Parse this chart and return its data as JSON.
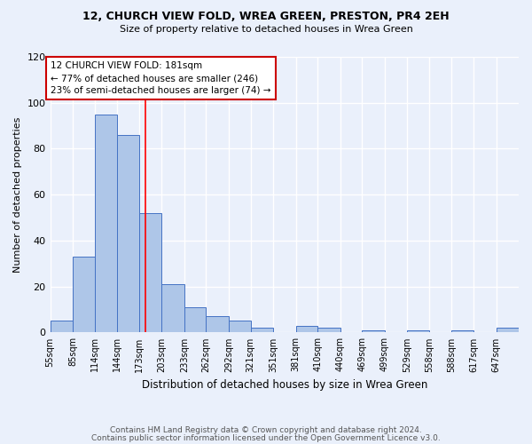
{
  "title1": "12, CHURCH VIEW FOLD, WREA GREEN, PRESTON, PR4 2EH",
  "title2": "Size of property relative to detached houses in Wrea Green",
  "xlabel": "Distribution of detached houses by size in Wrea Green",
  "ylabel": "Number of detached properties",
  "bin_labels": [
    "55sqm",
    "85sqm",
    "114sqm",
    "144sqm",
    "173sqm",
    "203sqm",
    "233sqm",
    "262sqm",
    "292sqm",
    "321sqm",
    "351sqm",
    "381sqm",
    "410sqm",
    "440sqm",
    "469sqm",
    "499sqm",
    "529sqm",
    "558sqm",
    "588sqm",
    "617sqm",
    "647sqm"
  ],
  "bar_values": [
    5,
    33,
    95,
    86,
    52,
    21,
    11,
    7,
    5,
    2,
    0,
    3,
    2,
    0,
    1,
    0,
    1,
    0,
    1,
    0,
    2
  ],
  "bar_color": "#aec6e8",
  "bar_edge_color": "#4472c4",
  "background_color": "#eaf0fb",
  "grid_color": "#ffffff",
  "red_line_x": 181,
  "bin_edges": [
    55,
    85,
    114,
    144,
    173,
    203,
    233,
    262,
    292,
    321,
    351,
    381,
    410,
    440,
    469,
    499,
    529,
    558,
    588,
    617,
    647,
    677
  ],
  "annotation_text": "12 CHURCH VIEW FOLD: 181sqm\n← 77% of detached houses are smaller (246)\n23% of semi-detached houses are larger (74) →",
  "annotation_box_color": "#ffffff",
  "annotation_box_edge": "#cc0000",
  "ylim": [
    0,
    120
  ],
  "yticks": [
    0,
    20,
    40,
    60,
    80,
    100,
    120
  ],
  "footer1": "Contains HM Land Registry data © Crown copyright and database right 2024.",
  "footer2": "Contains public sector information licensed under the Open Government Licence v3.0."
}
